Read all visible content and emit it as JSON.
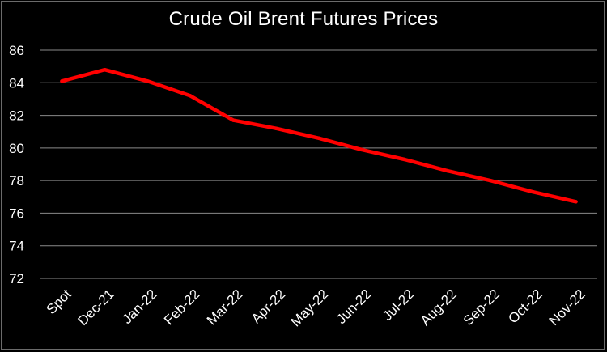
{
  "chart_data": {
    "type": "line",
    "title": "Crude Oil Brent Futures Prices",
    "xlabel": "",
    "ylabel": "",
    "categories": [
      "Spot",
      "Dec-21",
      "Jan-22",
      "Feb-22",
      "Mar-22",
      "Apr-22",
      "May-22",
      "Jun-22",
      "Jul-22",
      "Aug-22",
      "Sep-22",
      "Oct-22",
      "Nov-22"
    ],
    "series": [
      {
        "values": [
          84.1,
          84.8,
          84.1,
          83.2,
          81.7,
          81.2,
          80.6,
          79.9,
          79.3,
          78.6,
          78.0,
          77.3,
          76.7
        ],
        "color": "#ff0000"
      }
    ],
    "yticks": [
      72,
      74,
      76,
      78,
      80,
      82,
      84,
      86
    ],
    "ylim": [
      72,
      86
    ],
    "grid": true,
    "legend": "none"
  }
}
